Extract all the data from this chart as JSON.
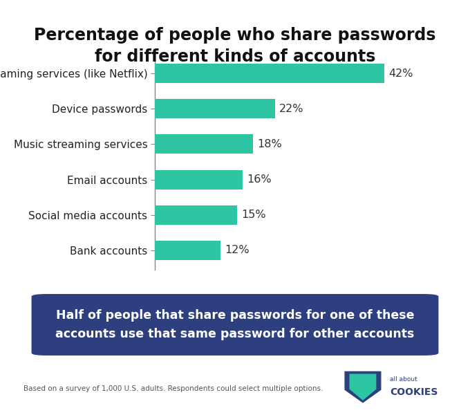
{
  "title": "Percentage of people who share passwords\nfor different kinds of accounts",
  "categories": [
    "Streaming services (like Netflix)",
    "Device passwords",
    "Music streaming services",
    "Email accounts",
    "Social media accounts",
    "Bank accounts"
  ],
  "values": [
    42,
    22,
    18,
    16,
    15,
    12
  ],
  "bar_color": "#2DC5A2",
  "bar_height": 0.55,
  "xlim": [
    0,
    50
  ],
  "title_fontsize": 17,
  "label_fontsize": 11,
  "value_fontsize": 11.5,
  "bg_color": "#ffffff",
  "callout_bg": "#2E3F7F",
  "callout_text": "Half of people that share passwords for one of these\naccounts use that same password for other accounts",
  "callout_text_color": "#ffffff",
  "callout_fontsize": 12.5,
  "footnote": "Based on a survey of 1,000 U.S. adults. Respondents could select multiple options.",
  "footnote_fontsize": 7.5,
  "logo_text1": "all about",
  "logo_text2": "COOKIES",
  "logo_color": "#2E3F7F",
  "logo_icon_color": "#2DC5A2"
}
